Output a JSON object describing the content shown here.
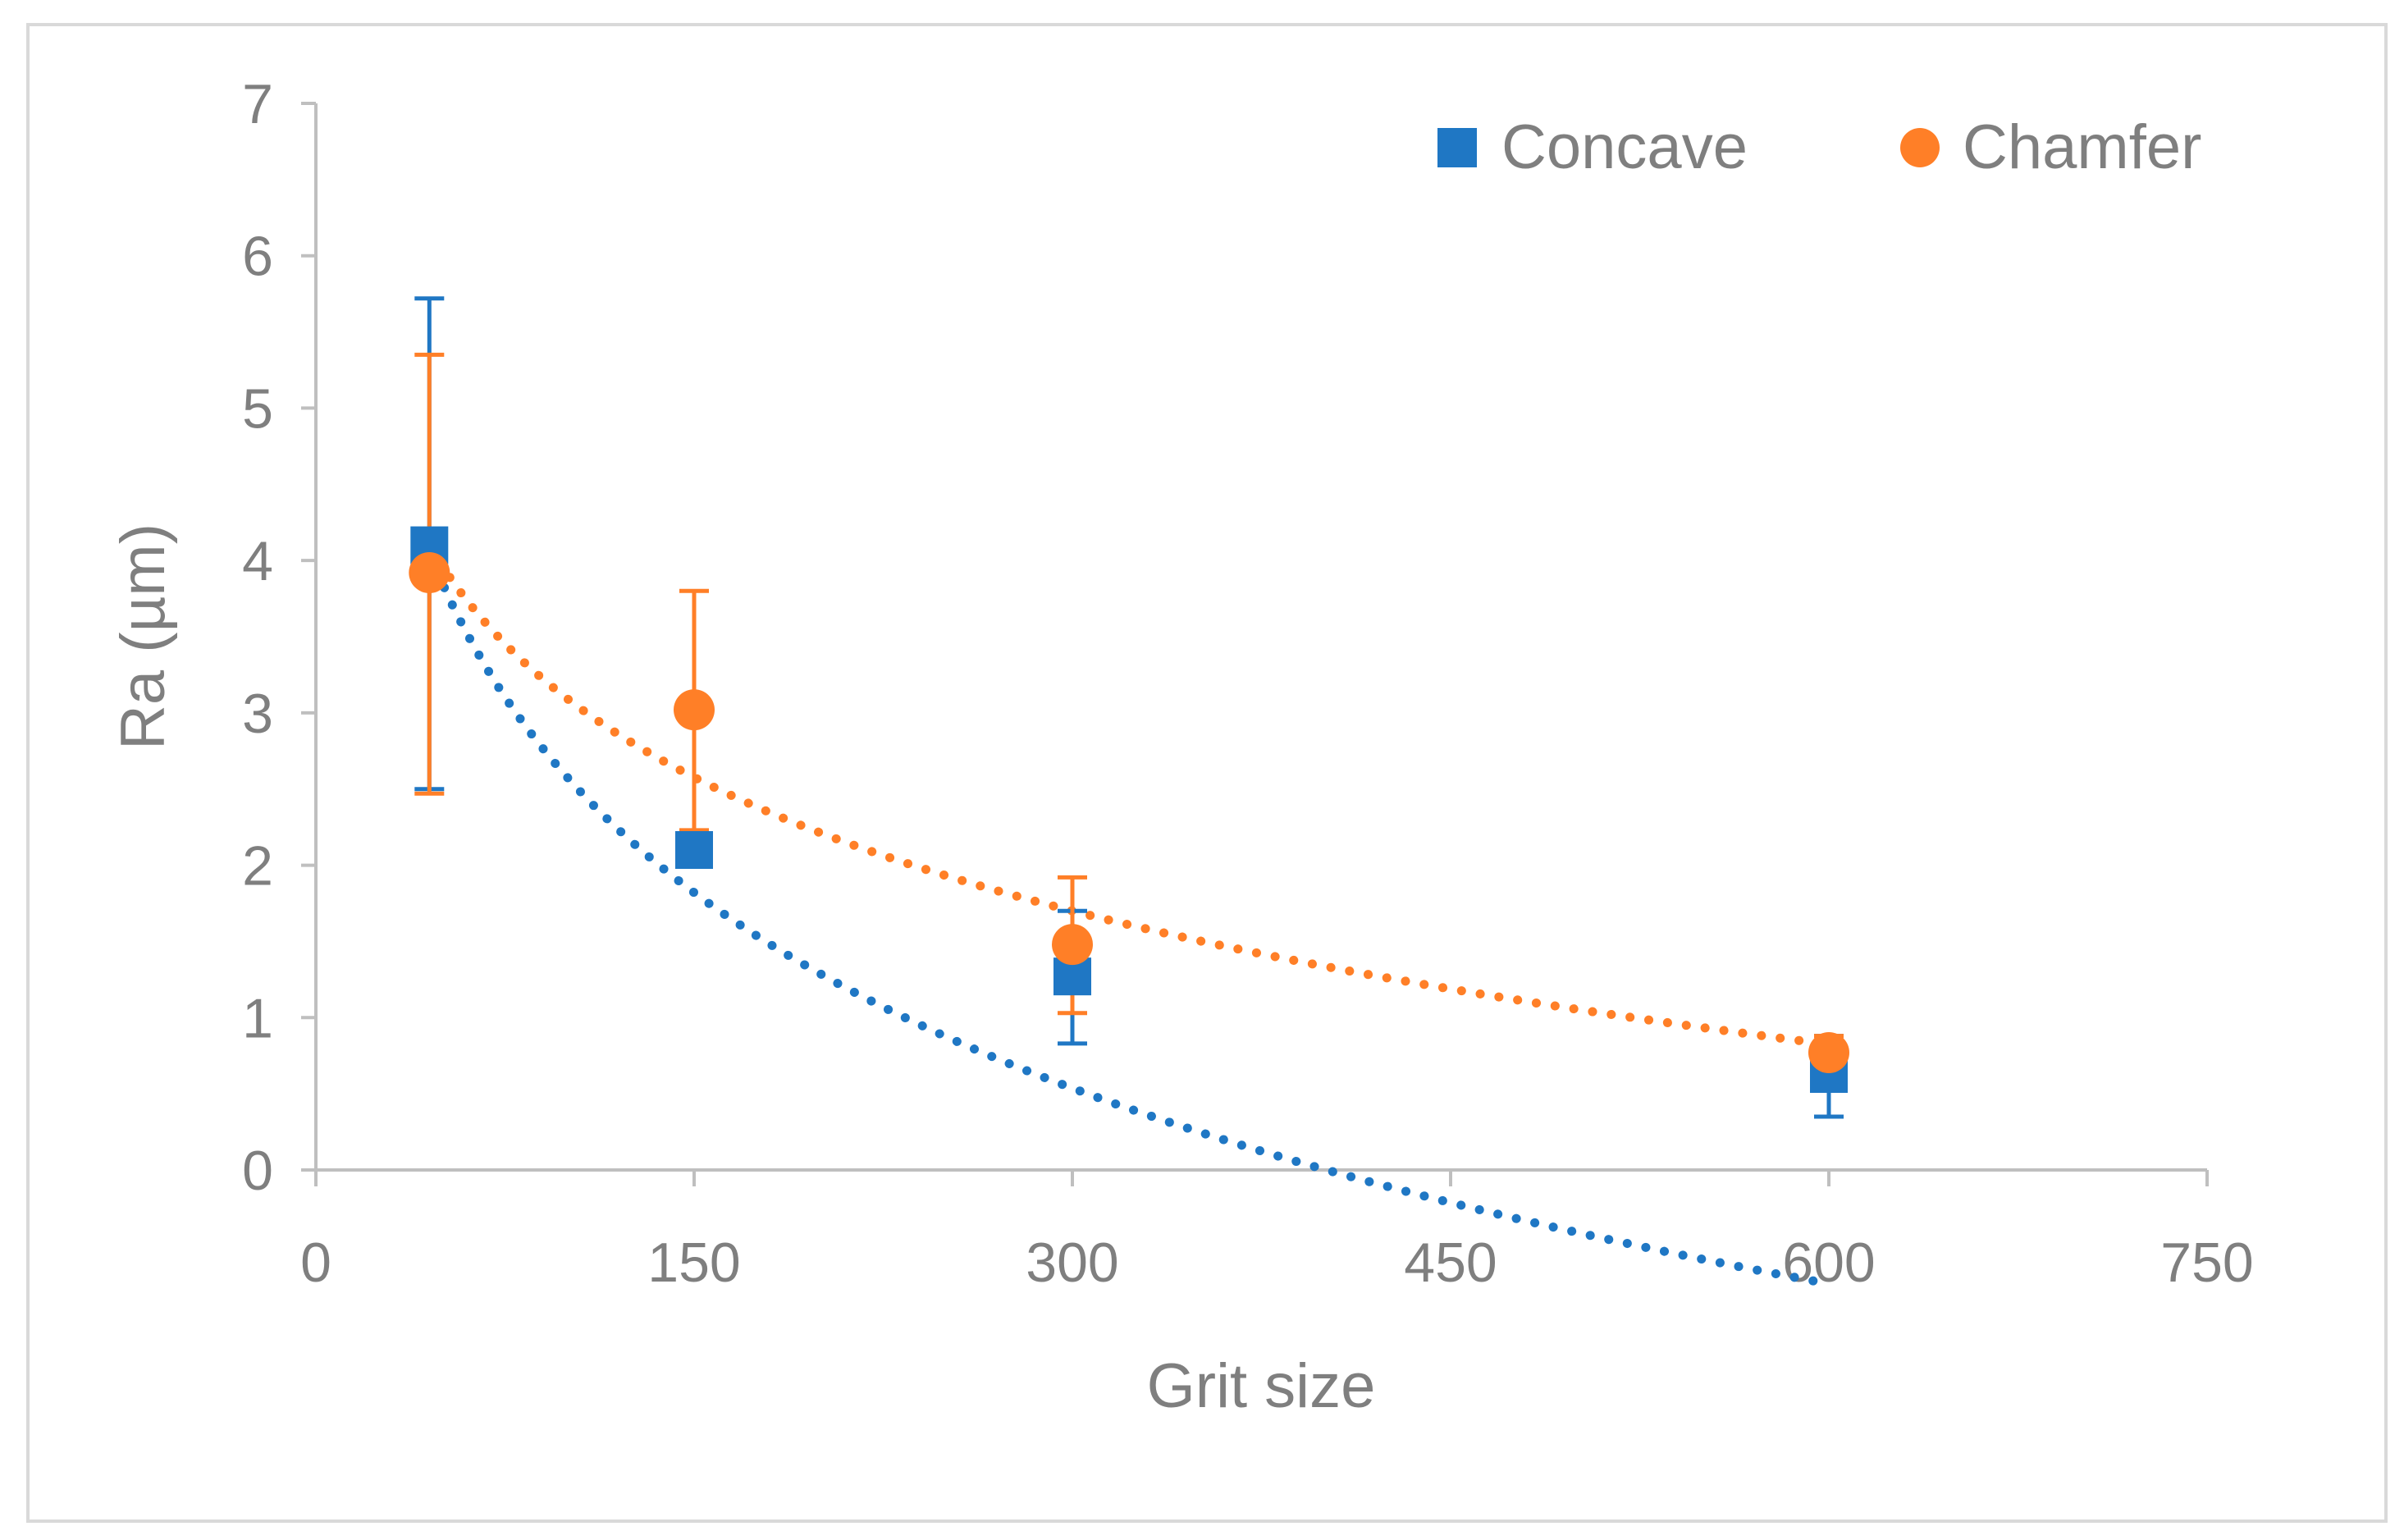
{
  "chart_data": {
    "type": "scatter",
    "title": "",
    "xlabel": "Grit size",
    "ylabel": "Ra (µm)",
    "xlim": [
      0,
      750
    ],
    "ylim": [
      0,
      7
    ],
    "xticks": [
      "0",
      "150",
      "300",
      "450",
      "600",
      "750"
    ],
    "xtick_values": [
      0,
      150,
      300,
      450,
      600,
      750
    ],
    "yticks": [
      "0",
      "1",
      "2",
      "3",
      "4",
      "5",
      "6",
      "7"
    ],
    "ytick_values": [
      0,
      1,
      2,
      3,
      4,
      5,
      6,
      7
    ],
    "grid": false,
    "legend_position": "top-right",
    "series": [
      {
        "name": "Concave",
        "marker": "square",
        "color": "#1f77c4",
        "x": [
          45,
          150,
          300,
          600
        ],
        "y": [
          4.1,
          2.1,
          1.27,
          0.63
        ],
        "err_low": [
          2.5,
          2.0,
          0.83,
          0.35
        ],
        "err_high": [
          5.72,
          2.2,
          1.7,
          0.88
        ],
        "trendline": {
          "type": "logarithmic",
          "a": -1.852,
          "b": 11.1,
          "x_range": [
            45,
            600
          ]
        }
      },
      {
        "name": "Chamfer",
        "marker": "circle",
        "color": "#ff7f27",
        "x": [
          45,
          150,
          300,
          600
        ],
        "y": [
          3.92,
          3.02,
          1.48,
          0.77
        ],
        "err_low": [
          2.47,
          2.23,
          1.03,
          0.65
        ],
        "err_high": [
          5.35,
          3.8,
          1.92,
          0.88
        ],
        "trendline": {
          "type": "logarithmic",
          "a": -1.264,
          "b": 8.91,
          "x_range": [
            45,
            600
          ]
        }
      }
    ]
  }
}
